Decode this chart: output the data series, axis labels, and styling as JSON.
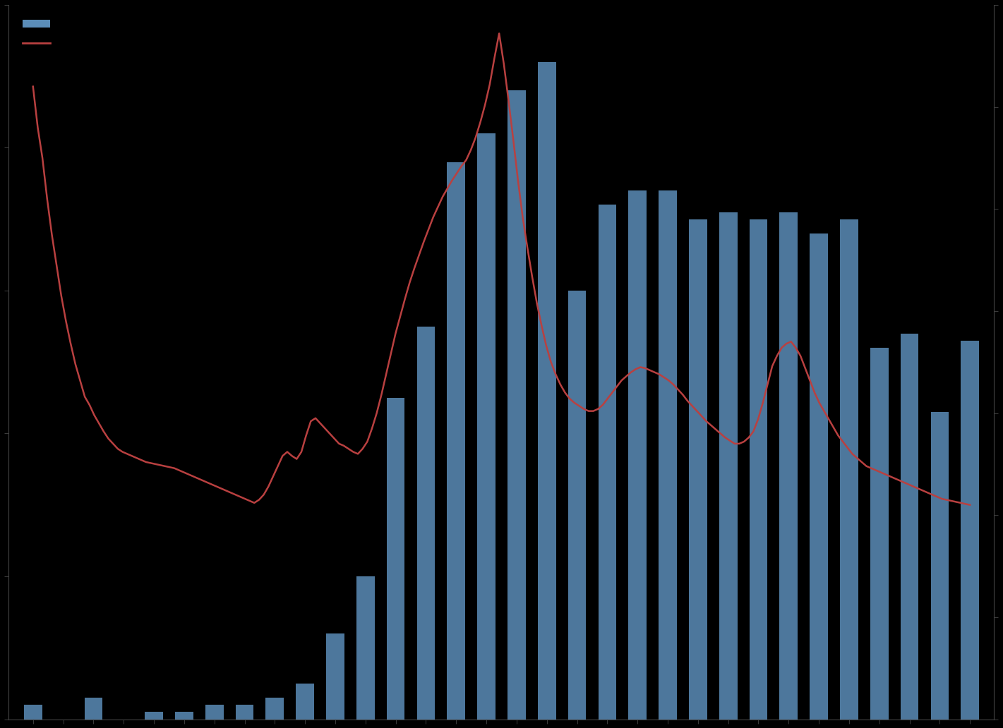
{
  "background_color": "#000000",
  "bar_color": "#5b8db8",
  "line_color": "#b94040",
  "bar_label": " ",
  "line_label": " ",
  "bar_values": [
    2,
    0,
    3,
    0,
    1,
    1,
    2,
    2,
    3,
    5,
    12,
    20,
    45,
    55,
    78,
    82,
    88,
    92,
    60,
    72,
    74,
    74,
    70,
    71,
    70,
    71,
    68,
    70,
    52,
    54,
    43,
    53
  ],
  "ylim_left": [
    0,
    100
  ],
  "left_ticks": [
    0,
    20,
    40,
    60,
    80,
    100
  ],
  "line_values_raw": [
    620,
    580,
    550,
    510,
    475,
    445,
    415,
    390,
    368,
    348,
    332,
    316,
    308,
    298,
    290,
    282,
    275,
    270,
    265,
    262,
    260,
    258,
    256,
    254,
    252,
    251,
    250,
    249,
    248,
    247,
    246,
    244,
    242,
    240,
    238,
    236,
    234,
    232,
    230,
    228,
    226,
    224,
    222,
    220,
    218,
    216,
    214,
    212,
    215,
    220,
    228,
    238,
    248,
    258,
    262,
    258,
    255,
    262,
    278,
    292,
    295,
    290,
    285,
    280,
    275,
    270,
    268,
    265,
    262,
    260,
    265,
    272,
    285,
    300,
    318,
    338,
    358,
    378,
    395,
    412,
    428,
    442,
    455,
    468,
    480,
    492,
    502,
    512,
    520,
    528,
    535,
    542,
    548,
    558,
    570,
    585,
    602,
    622,
    648,
    672,
    642,
    606,
    568,
    528,
    492,
    462,
    434,
    408,
    386,
    366,
    350,
    338,
    328,
    320,
    314,
    310,
    307,
    304,
    302,
    302,
    304,
    308,
    314,
    320,
    326,
    332,
    336,
    340,
    343,
    345,
    344,
    342,
    340,
    338,
    335,
    332,
    328,
    323,
    318,
    312,
    307,
    302,
    297,
    292,
    288,
    284,
    280,
    276,
    273,
    270,
    270,
    272,
    276,
    282,
    294,
    310,
    328,
    346,
    356,
    364,
    368,
    370,
    364,
    356,
    344,
    332,
    320,
    310,
    302,
    294,
    286,
    278,
    272,
    266,
    260,
    256,
    252,
    248,
    246,
    244,
    242,
    240,
    238,
    236,
    234,
    232,
    230,
    228,
    226,
    224,
    222,
    220,
    218,
    216,
    215,
    214,
    213,
    212,
    211,
    210
  ]
}
